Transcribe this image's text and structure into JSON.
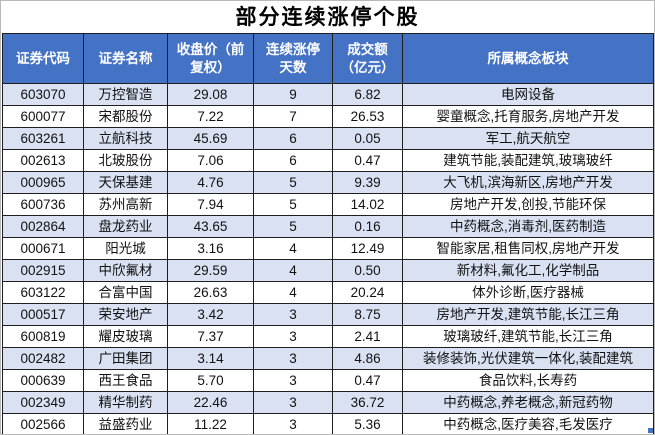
{
  "title": "部分连续涨停个股",
  "colors": {
    "header_bg": "#4472C4",
    "header_text": "#FFFFFF",
    "row_stripe": "#D9E1F2",
    "row_plain": "#FFFFFF",
    "grid_border": "#1F1F1F",
    "title_text": "#000000",
    "fill_handle": "#4472C4"
  },
  "table": {
    "header_display": [
      "证券代码",
      "证券名称",
      "收盘价（前\n复权）",
      "连续涨停\n天数",
      "成交额\n（亿元）",
      "所属概念板块"
    ]
  },
  "chart_data": {
    "type": "table",
    "title": "部分连续涨停个股",
    "columns": [
      "证券代码",
      "证券名称",
      "收盘价（前复权）",
      "连续涨停天数",
      "成交额（亿元）",
      "所属概念板块"
    ],
    "rows": [
      {
        "code": "603070",
        "name": "万控智造",
        "close": "29.08",
        "days": "9",
        "turnover": "6.82",
        "concepts": "电网设备"
      },
      {
        "code": "600077",
        "name": "宋都股份",
        "close": "7.22",
        "days": "7",
        "turnover": "26.53",
        "concepts": "婴童概念,托育服务,房地产开发"
      },
      {
        "code": "603261",
        "name": "立航科技",
        "close": "45.69",
        "days": "6",
        "turnover": "0.05",
        "concepts": "军工,航天航空"
      },
      {
        "code": "002613",
        "name": "北玻股份",
        "close": "7.06",
        "days": "6",
        "turnover": "0.47",
        "concepts": "建筑节能,装配建筑,玻璃玻纤"
      },
      {
        "code": "000965",
        "name": "天保基建",
        "close": "4.76",
        "days": "5",
        "turnover": "9.39",
        "concepts": "大飞机,滨海新区,房地产开发"
      },
      {
        "code": "600736",
        "name": "苏州高新",
        "close": "7.94",
        "days": "5",
        "turnover": "14.02",
        "concepts": "房地产开发,创投,节能环保"
      },
      {
        "code": "002864",
        "name": "盘龙药业",
        "close": "43.65",
        "days": "5",
        "turnover": "0.16",
        "concepts": "中药概念,消毒剂,医药制造"
      },
      {
        "code": "000671",
        "name": "阳光城",
        "close": "3.16",
        "days": "4",
        "turnover": "12.49",
        "concepts": "智能家居,租售同权,房地产开发"
      },
      {
        "code": "002915",
        "name": "中欣氟材",
        "close": "29.59",
        "days": "4",
        "turnover": "0.50",
        "concepts": "新材料,氟化工,化学制品"
      },
      {
        "code": "603122",
        "name": "合富中国",
        "close": "26.63",
        "days": "4",
        "turnover": "20.24",
        "concepts": "体外诊断,医疗器械"
      },
      {
        "code": "000517",
        "name": "荣安地产",
        "close": "3.42",
        "days": "3",
        "turnover": "8.75",
        "concepts": "房地产开发,建筑节能,长江三角"
      },
      {
        "code": "600819",
        "name": "耀皮玻璃",
        "close": "7.37",
        "days": "3",
        "turnover": "2.41",
        "concepts": "玻璃玻纤,建筑节能,长江三角"
      },
      {
        "code": "002482",
        "name": "广田集团",
        "close": "3.14",
        "days": "3",
        "turnover": "4.86",
        "concepts": "装修装饰,光伏建筑一体化,装配建筑"
      },
      {
        "code": "000639",
        "name": "西王食品",
        "close": "5.70",
        "days": "3",
        "turnover": "0.47",
        "concepts": "食品饮料,长寿药"
      },
      {
        "code": "002349",
        "name": "精华制药",
        "close": "22.46",
        "days": "3",
        "turnover": "36.72",
        "concepts": "中药概念,养老概念,新冠药物"
      },
      {
        "code": "002566",
        "name": "益盛药业",
        "close": "11.22",
        "days": "3",
        "turnover": "5.36",
        "concepts": "中药概念,医疗美容,毛发医疗"
      }
    ]
  }
}
